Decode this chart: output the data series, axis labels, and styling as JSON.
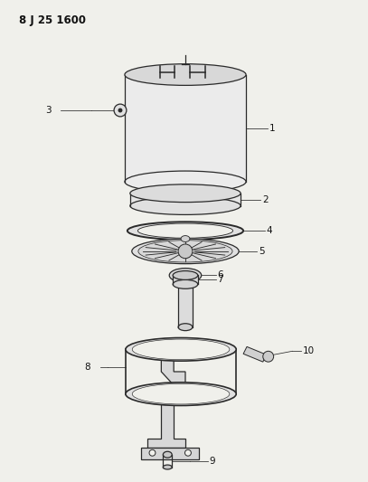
{
  "title": "8 J 25 1600",
  "background_color": "#f0f0eb",
  "line_color": "#2a2a2a",
  "label_color": "#111111",
  "fig_width": 4.07,
  "fig_height": 5.33,
  "dpi": 100
}
